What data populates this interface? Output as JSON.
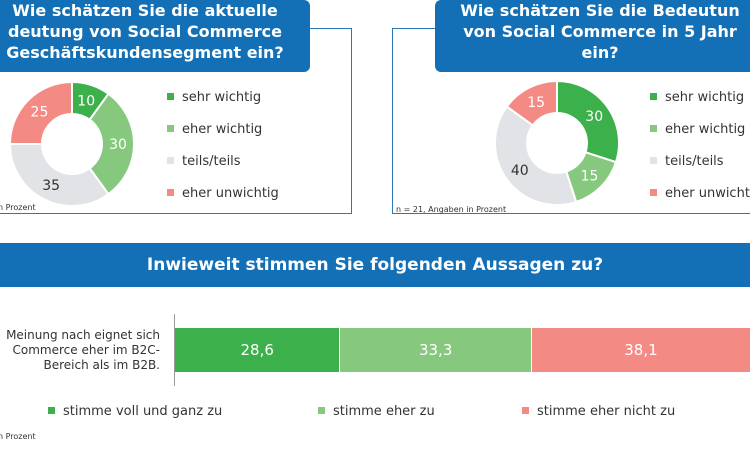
{
  "colors": {
    "sehr_wichtig": "#3cb04a",
    "eher_wichtig": "#86c97e",
    "teils_teils": "#e2e3e6",
    "eher_unwichtig": "#f48a84",
    "brand_blue": "#1470b6"
  },
  "chart_data": [
    {
      "type": "pie",
      "title_lines": [
        "Wie schätzen Sie die aktuelle",
        "deutung von Social Commerce",
        "Geschäftskundensegment ein?"
      ],
      "categories": [
        "sehr wichtig",
        "eher wichtig",
        "teils/teils",
        "eher unwichtig"
      ],
      "values": [
        10,
        30,
        35,
        25
      ],
      "legend_placement": "right",
      "note": "n Prozent"
    },
    {
      "type": "pie",
      "title_lines": [
        "Wie schätzen Sie die Bedeutun",
        "von Social Commerce in 5 Jahr",
        "ein?"
      ],
      "categories": [
        "sehr wichtig",
        "eher wichtig",
        "teils/teils",
        "eher unwichtig"
      ],
      "values": [
        30,
        15,
        40,
        15
      ],
      "legend_labels": [
        "sehr wichtig",
        "eher wichtig",
        "teils/teils",
        "eher unwichti"
      ],
      "legend_placement": "right",
      "note": "n = 21, Angaben in Prozent"
    },
    {
      "type": "bar",
      "title": "Inwieweit stimmen Sie folgenden Aussagen zu?",
      "categories": [
        "Meinung nach eignet sich Commerce eher im B2C-Bereich als im B2B."
      ],
      "statement_lines": [
        "Meinung nach eignet sich",
        "Commerce eher im B2C-",
        "Bereich als im B2B."
      ],
      "series": [
        {
          "name": "stimme voll und ganz zu",
          "values": [
            28.6
          ],
          "label": "28,6"
        },
        {
          "name": "stimme eher zu",
          "values": [
            33.3
          ],
          "label": "33,3"
        },
        {
          "name": "stimme eher nicht zu",
          "values": [
            38.1
          ],
          "label": "38,1"
        }
      ],
      "stacked": true,
      "xlim": [
        0,
        100
      ],
      "note": "n Prozent"
    }
  ]
}
